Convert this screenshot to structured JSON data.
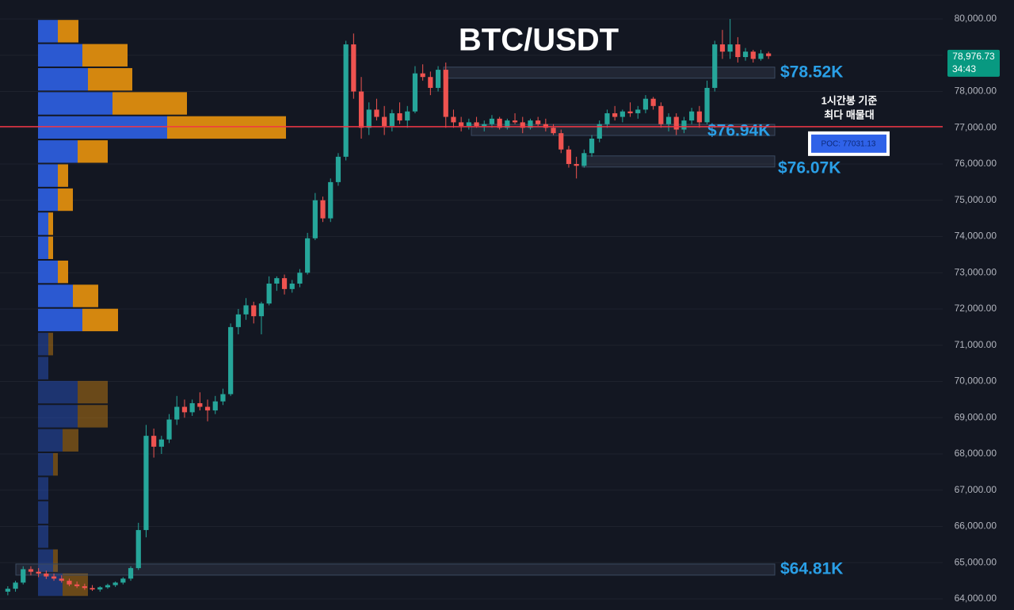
{
  "chart_data": {
    "type": "candlestick",
    "title": "BTC/USDT",
    "ohlc": [
      [
        64200,
        64350,
        64100,
        64280
      ],
      [
        64280,
        64500,
        64200,
        64450
      ],
      [
        64450,
        64900,
        64400,
        64820
      ],
      [
        64820,
        64900,
        64650,
        64750
      ],
      [
        64750,
        64850,
        64600,
        64700
      ],
      [
        64700,
        64780,
        64550,
        64620
      ],
      [
        64620,
        64700,
        64500,
        64560
      ],
      [
        64560,
        64650,
        64450,
        64500
      ],
      [
        64500,
        64560,
        64350,
        64400
      ],
      [
        64400,
        64480,
        64300,
        64350
      ],
      [
        64350,
        64420,
        64250,
        64300
      ],
      [
        64300,
        64380,
        64220,
        64260
      ],
      [
        64260,
        64350,
        64200,
        64320
      ],
      [
        64320,
        64420,
        64280,
        64380
      ],
      [
        64380,
        64480,
        64330,
        64450
      ],
      [
        64450,
        64600,
        64400,
        64560
      ],
      [
        64560,
        64900,
        64500,
        64850
      ],
      [
        64850,
        66100,
        64800,
        65900
      ],
      [
        65900,
        68800,
        65700,
        68500
      ],
      [
        68500,
        68700,
        67900,
        68200
      ],
      [
        68200,
        68500,
        68000,
        68400
      ],
      [
        68400,
        69100,
        68300,
        68950
      ],
      [
        68950,
        69600,
        68800,
        69300
      ],
      [
        69300,
        69500,
        69000,
        69150
      ],
      [
        69150,
        69500,
        69050,
        69400
      ],
      [
        69400,
        69700,
        69200,
        69300
      ],
      [
        69300,
        69500,
        68900,
        69200
      ],
      [
        69200,
        69600,
        69100,
        69450
      ],
      [
        69450,
        69800,
        69350,
        69650
      ],
      [
        69650,
        71600,
        69600,
        71500
      ],
      [
        71500,
        72000,
        71300,
        71850
      ],
      [
        71850,
        72300,
        71700,
        72100
      ],
      [
        72100,
        72200,
        71600,
        71800
      ],
      [
        71800,
        72200,
        71300,
        72150
      ],
      [
        72150,
        72900,
        72100,
        72700
      ],
      [
        72700,
        72900,
        72500,
        72850
      ],
      [
        72850,
        72950,
        72400,
        72550
      ],
      [
        72550,
        72800,
        72450,
        72700
      ],
      [
        72700,
        73100,
        72600,
        73000
      ],
      [
        73000,
        74100,
        72950,
        73950
      ],
      [
        73950,
        75200,
        73900,
        75000
      ],
      [
        75000,
        75100,
        74400,
        74500
      ],
      [
        74500,
        75600,
        74400,
        75500
      ],
      [
        75500,
        76300,
        75400,
        76200
      ],
      [
        76200,
        79400,
        76100,
        79300
      ],
      [
        79300,
        79600,
        77800,
        78000
      ],
      [
        78000,
        78400,
        76700,
        77000
      ],
      [
        77000,
        77700,
        76800,
        77500
      ],
      [
        77500,
        77800,
        77200,
        77300
      ],
      [
        77300,
        77600,
        76800,
        77050
      ],
      [
        77050,
        77500,
        76900,
        77400
      ],
      [
        77400,
        77700,
        77100,
        77200
      ],
      [
        77200,
        77600,
        77000,
        77450
      ],
      [
        77450,
        78700,
        77400,
        78500
      ],
      [
        78500,
        78750,
        78300,
        78400
      ],
      [
        78400,
        78550,
        77900,
        78100
      ],
      [
        78100,
        78700,
        78000,
        78600
      ],
      [
        78600,
        78800,
        77000,
        77300
      ],
      [
        77300,
        77500,
        77000,
        77150
      ],
      [
        77150,
        77300,
        76900,
        77050
      ],
      [
        77050,
        77250,
        76950,
        77150
      ],
      [
        77150,
        77300,
        77000,
        77050
      ],
      [
        77050,
        77200,
        76900,
        77100
      ],
      [
        77100,
        77350,
        77000,
        77250
      ],
      [
        77250,
        77300,
        76950,
        77000
      ],
      [
        77000,
        77250,
        76950,
        77200
      ],
      [
        77200,
        77400,
        77100,
        77150
      ],
      [
        77150,
        77300,
        76850,
        77000
      ],
      [
        77000,
        77250,
        76950,
        77200
      ],
      [
        77200,
        77300,
        77050,
        77100
      ],
      [
        77100,
        77250,
        76900,
        77000
      ],
      [
        77000,
        77100,
        76800,
        76850
      ],
      [
        76850,
        76950,
        76300,
        76400
      ],
      [
        76400,
        76500,
        75900,
        76000
      ],
      [
        76000,
        76200,
        75600,
        75950
      ],
      [
        75950,
        76400,
        75900,
        76300
      ],
      [
        76300,
        76800,
        76200,
        76700
      ],
      [
        76700,
        77200,
        76600,
        77100
      ],
      [
        77100,
        77500,
        77000,
        77400
      ],
      [
        77400,
        77600,
        77200,
        77300
      ],
      [
        77300,
        77500,
        77150,
        77450
      ],
      [
        77450,
        77700,
        77300,
        77400
      ],
      [
        77400,
        77600,
        77250,
        77500
      ],
      [
        77500,
        77900,
        77400,
        77800
      ],
      [
        77800,
        77850,
        77500,
        77600
      ],
      [
        77600,
        77700,
        77000,
        77100
      ],
      [
        77100,
        77400,
        76900,
        77300
      ],
      [
        77300,
        77400,
        76800,
        76950
      ],
      [
        76950,
        77300,
        76850,
        77200
      ],
      [
        77200,
        77550,
        77100,
        77450
      ],
      [
        77450,
        77600,
        77000,
        77150
      ],
      [
        77150,
        78300,
        77100,
        78100
      ],
      [
        78100,
        79400,
        78000,
        79300
      ],
      [
        79300,
        79700,
        78900,
        79100
      ],
      [
        79100,
        80000,
        78900,
        79300
      ],
      [
        79300,
        79500,
        78800,
        78950
      ],
      [
        78950,
        79200,
        78850,
        79100
      ],
      [
        79100,
        79150,
        78800,
        78900
      ],
      [
        78900,
        79150,
        78850,
        79050
      ],
      [
        79050,
        79100,
        78900,
        78976.73
      ]
    ],
    "up_color": "#26a69a",
    "down_color": "#ef5350",
    "ylim": [
      63694,
      80525
    ],
    "yticks": [
      {
        "value": 64000,
        "label": "64,000.00"
      },
      {
        "value": 65000,
        "label": "65,000.00"
      },
      {
        "value": 66000,
        "label": "66,000.00"
      },
      {
        "value": 67000,
        "label": "67,000.00"
      },
      {
        "value": 68000,
        "label": "68,000.00"
      },
      {
        "value": 69000,
        "label": "69,000.00"
      },
      {
        "value": 70000,
        "label": "70,000.00"
      },
      {
        "value": 71000,
        "label": "71,000.00"
      },
      {
        "value": 72000,
        "label": "72,000.00"
      },
      {
        "value": 73000,
        "label": "73,000.00"
      },
      {
        "value": 74000,
        "label": "74,000.00"
      },
      {
        "value": 75000,
        "label": "75,000.00"
      },
      {
        "value": 76000,
        "label": "76,000.00"
      },
      {
        "value": 77000,
        "label": "77,000.00"
      },
      {
        "value": 78000,
        "label": "78,000.00"
      },
      {
        "value": 79000,
        "label": "79,000.00"
      },
      {
        "value": 80000,
        "label": "80,000.00"
      }
    ],
    "grid": true,
    "last_price": {
      "value": 78976.73,
      "label": "78,976.73",
      "countdown": "34:43",
      "color": "#089981"
    },
    "poc": {
      "value": 77031.13,
      "label": "POC: 77031.13",
      "note": [
        "1시간봉 기준",
        "최다 매물대"
      ],
      "color": "#f23645"
    },
    "levels": [
      {
        "value": 78520,
        "label": "$78.52K"
      },
      {
        "value": 76940,
        "label": "$76.94K"
      },
      {
        "value": 76070,
        "label": "$76.07K"
      },
      {
        "value": 64810,
        "label": "$64.81K"
      }
    ],
    "level_color": "#2a9fe6",
    "volume_profile": {
      "bins": [
        64060,
        64724,
        65388,
        66052,
        66716,
        67380,
        68044,
        68708,
        69372,
        70036,
        70700,
        71364,
        72028,
        72692,
        73356,
        74020,
        74684,
        75348,
        76012,
        76676,
        77340,
        78004,
        78668,
        79332,
        79996
      ],
      "buy": [
        31,
        19,
        13,
        13,
        13,
        19,
        31,
        50,
        50,
        13,
        13,
        56,
        44,
        25,
        13,
        13,
        25,
        25,
        50,
        163,
        94,
        63,
        56,
        25
      ],
      "sell": [
        32,
        6,
        0,
        0,
        0,
        6,
        20,
        38,
        38,
        0,
        6,
        45,
        32,
        13,
        6,
        6,
        19,
        13,
        38,
        150,
        94,
        56,
        57,
        26
      ],
      "xlim": [
        0,
        320
      ],
      "buy_color": "#2b59d1",
      "sell_color": "#d4870f",
      "value_area": [
        71364,
        79996
      ]
    }
  }
}
